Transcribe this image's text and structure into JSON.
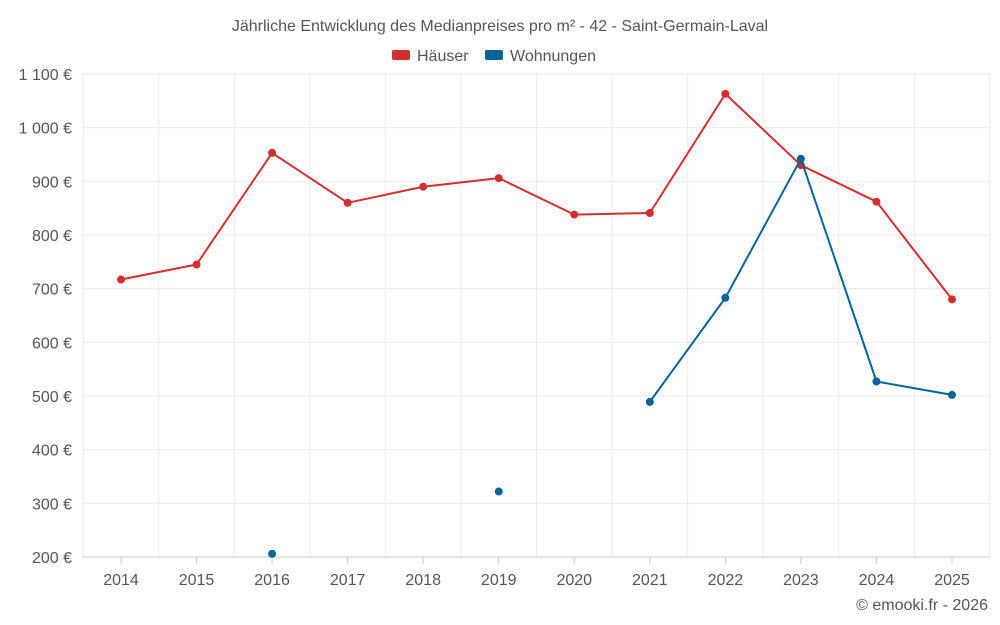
{
  "chart_data": {
    "type": "line",
    "title": "Jährliche Entwicklung des Medianpreises pro m² - 42 - Saint-Germain-Laval",
    "categories": [
      "2014",
      "2015",
      "2016",
      "2017",
      "2018",
      "2019",
      "2020",
      "2021",
      "2022",
      "2023",
      "2024",
      "2025"
    ],
    "series": [
      {
        "name": "Häuser",
        "color": "#d32f2f",
        "values": [
          717,
          745,
          953,
          860,
          890,
          906,
          838,
          841,
          1063,
          930,
          862,
          680
        ]
      },
      {
        "name": "Wohnungen",
        "color": "#03649c",
        "values": [
          null,
          null,
          206,
          null,
          null,
          322,
          null,
          489,
          683,
          942,
          527,
          502
        ]
      }
    ],
    "ylim": [
      200,
      1100
    ],
    "yticks": [
      200,
      300,
      400,
      500,
      600,
      700,
      800,
      900,
      1000,
      1100
    ],
    "ytick_labels": [
      "200 €",
      "300 €",
      "400 €",
      "500 €",
      "600 €",
      "700 €",
      "800 €",
      "900 €",
      "1 000 €",
      "1 100 €"
    ],
    "legend_position": "top-center",
    "grid": true
  },
  "credit": "© emooki.fr - 2026"
}
